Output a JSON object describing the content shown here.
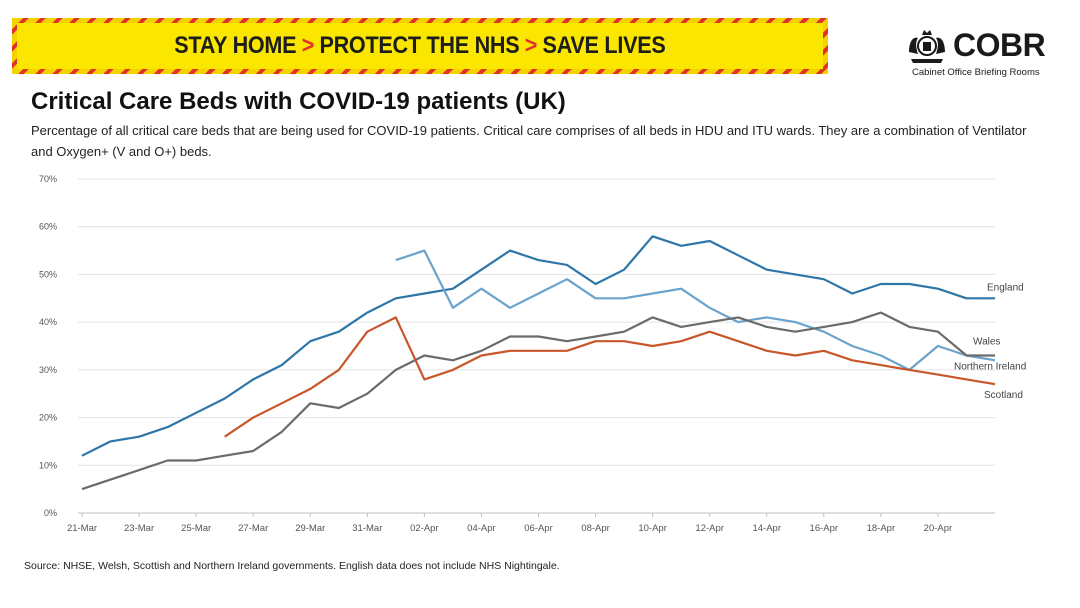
{
  "banner": {
    "parts": [
      "STAY HOME",
      "PROTECT THE NHS",
      "SAVE LIVES"
    ],
    "separator": ">",
    "background": "#fbe600",
    "stripe_color": "#e2312b"
  },
  "logo": {
    "name": "COBR",
    "subtitle": "Cabinet Office Briefing Rooms",
    "icon": "royal-crest-icon"
  },
  "title": "Critical Care Beds with COVID-19 patients (UK)",
  "subtitle": "Percentage of all critical care beds that are being used for COVID-19 patients. Critical care comprises of all beds in HDU and ITU wards. They are a combination of Ventilator and Oxygen+ (V and O+) beds.",
  "source": "Source: NHSE, Welsh, Scottish and Northern Ireland governments. English data does not include NHS Nightingale.",
  "chart_data": {
    "type": "line",
    "title": "",
    "xlabel": "",
    "ylabel": "",
    "x_start": "21-Mar",
    "x_end": "22-Apr",
    "x_tick_labels": [
      "21-Mar",
      "23-Mar",
      "25-Mar",
      "27-Mar",
      "29-Mar",
      "31-Mar",
      "02-Apr",
      "04-Apr",
      "06-Apr",
      "08-Apr",
      "10-Apr",
      "12-Apr",
      "14-Apr",
      "16-Apr",
      "18-Apr",
      "20-Apr"
    ],
    "y_tick_labels": [
      "0%",
      "10%",
      "20%",
      "30%",
      "40%",
      "50%",
      "60%",
      "70%"
    ],
    "ylim": [
      0,
      70
    ],
    "y_unit": "%",
    "grid": true,
    "legend": "inline labels at right end of each line",
    "x": [
      "21-Mar",
      "22-Mar",
      "23-Mar",
      "24-Mar",
      "25-Mar",
      "26-Mar",
      "27-Mar",
      "28-Mar",
      "29-Mar",
      "30-Mar",
      "31-Mar",
      "01-Apr",
      "02-Apr",
      "03-Apr",
      "04-Apr",
      "05-Apr",
      "06-Apr",
      "07-Apr",
      "08-Apr",
      "09-Apr",
      "10-Apr",
      "11-Apr",
      "12-Apr",
      "13-Apr",
      "14-Apr",
      "15-Apr",
      "16-Apr",
      "17-Apr",
      "18-Apr",
      "19-Apr",
      "20-Apr",
      "21-Apr",
      "22-Apr"
    ],
    "series": [
      {
        "name": "England",
        "color": "#2e75a8",
        "values": [
          12,
          15,
          16,
          18,
          21,
          24,
          28,
          31,
          36,
          38,
          42,
          45,
          46,
          47,
          51,
          55,
          53,
          52,
          48,
          51,
          58,
          56,
          57,
          54,
          51,
          50,
          49,
          46,
          48,
          48,
          47,
          45,
          45
        ]
      },
      {
        "name": "Northern Ireland",
        "color": "#6aa3cc",
        "values": [
          null,
          null,
          null,
          null,
          null,
          null,
          null,
          null,
          null,
          null,
          null,
          53,
          55,
          43,
          47,
          43,
          46,
          49,
          45,
          45,
          46,
          47,
          43,
          40,
          41,
          40,
          38,
          35,
          33,
          30,
          35,
          33,
          32
        ]
      },
      {
        "name": "Wales",
        "color": "#6b6b6b",
        "values": [
          5,
          7,
          9,
          11,
          11,
          12,
          13,
          17,
          23,
          22,
          25,
          30,
          33,
          32,
          34,
          37,
          37,
          36,
          37,
          38,
          41,
          39,
          40,
          41,
          39,
          38,
          39,
          40,
          42,
          39,
          38,
          33,
          33
        ]
      },
      {
        "name": "Scotland",
        "color": "#c8562a",
        "values": [
          null,
          null,
          null,
          null,
          null,
          16,
          20,
          23,
          26,
          30,
          38,
          41,
          28,
          30,
          33,
          34,
          34,
          34,
          36,
          36,
          35,
          36,
          38,
          36,
          34,
          33,
          34,
          32,
          31,
          30,
          29,
          28,
          27
        ]
      }
    ]
  }
}
